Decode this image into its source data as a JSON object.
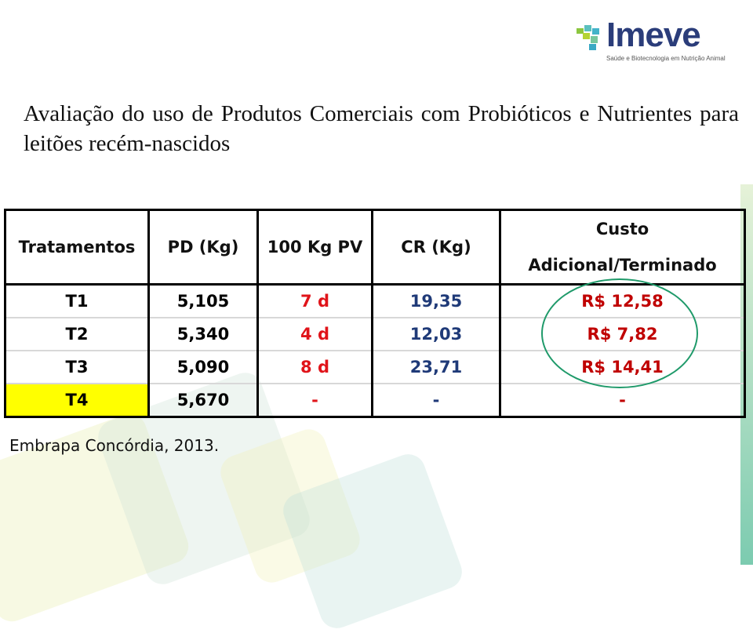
{
  "logo": {
    "name": "Imeve",
    "tagline": "Saúde e Biotecnologia em Nutrição Animal"
  },
  "title": "Avaliação do uso de Produtos Comerciais com Probióticos e Nutrientes para leitões recém-nascidos",
  "table": {
    "headers": [
      "Tratamentos",
      "PD (Kg)",
      "100 Kg PV",
      "CR (Kg)",
      "Custo Adicional/Terminado"
    ],
    "rows": [
      [
        "T1",
        "5,105",
        "7 d",
        "19,35",
        "R$ 12,58"
      ],
      [
        "T2",
        "5,340",
        "4 d",
        "12,03",
        "R$ 7,82"
      ],
      [
        "T3",
        "5,090",
        "8 d",
        "23,71",
        "R$ 14,41"
      ],
      [
        "T4",
        "5,670",
        "-",
        "-",
        "-"
      ]
    ]
  },
  "source": "Embrapa Concórdia, 2013.",
  "colors": {
    "highlight": "#ffff00",
    "red": "#e0141a",
    "blue": "#1f3a78",
    "circle": "#1f9a6a"
  }
}
